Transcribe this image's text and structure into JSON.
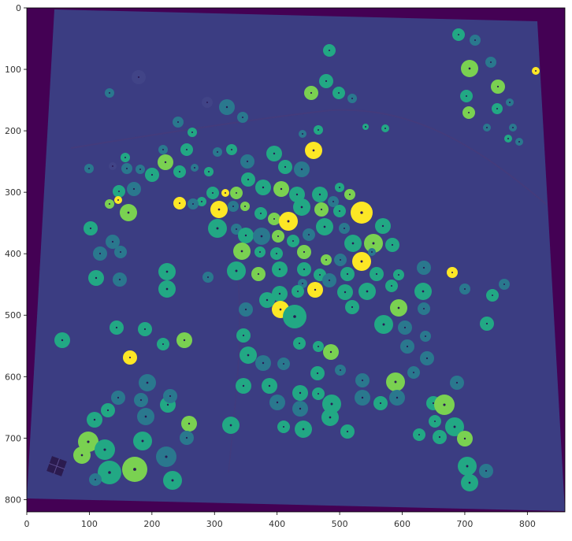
{
  "image": {
    "description_free": true,
    "colormap": "viridis",
    "colors": {
      "background_dark": "#440154",
      "field_base": "#3b3d82",
      "low": "#414487",
      "mid": "#2a788e",
      "high": "#22a884",
      "bright": "#7ad151",
      "max": "#fde725"
    }
  },
  "axes": {
    "x_ticks": [
      "0",
      "100",
      "200",
      "300",
      "400",
      "500",
      "600",
      "700",
      "800"
    ],
    "y_ticks": [
      "0",
      "100",
      "200",
      "300",
      "400",
      "500",
      "600",
      "700",
      "800"
    ],
    "x_range": [
      0,
      860
    ],
    "y_range": [
      820,
      0
    ]
  }
}
